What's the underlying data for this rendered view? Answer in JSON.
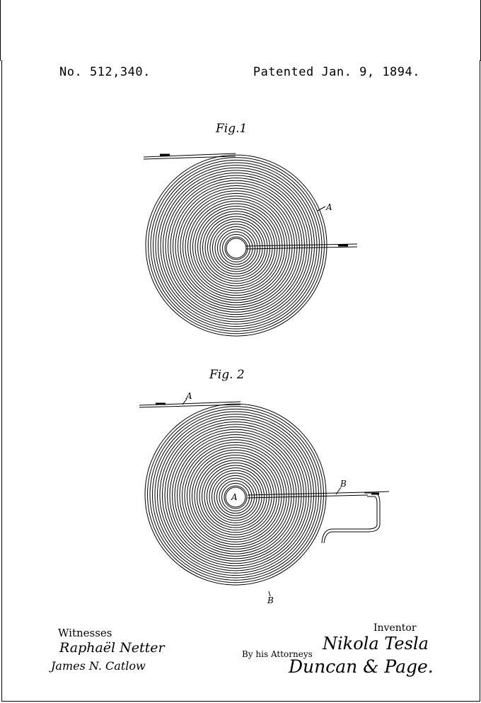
{
  "header": {
    "patent_number": "No. 512,340.",
    "patent_date": "Patented Jan. 9, 1894."
  },
  "figures": {
    "fig1_label": "Fig.1",
    "fig2_label": "Fig. 2",
    "fig1_ref_a": "A",
    "fig2_ref_a_top": "A",
    "fig2_ref_a_center": "A",
    "fig2_ref_b_right": "B",
    "fig2_ref_b_bottom": "B"
  },
  "footer": {
    "witnesses_label": "Witnesses",
    "witness_1": "Raphaël Netter",
    "witness_2": "James N. Catlow",
    "inventor_label": "Inventor",
    "inventor_name": "Nikola Tesla",
    "by_attorneys": "By his Attorneys",
    "attorneys": "Duncan & Page."
  }
}
